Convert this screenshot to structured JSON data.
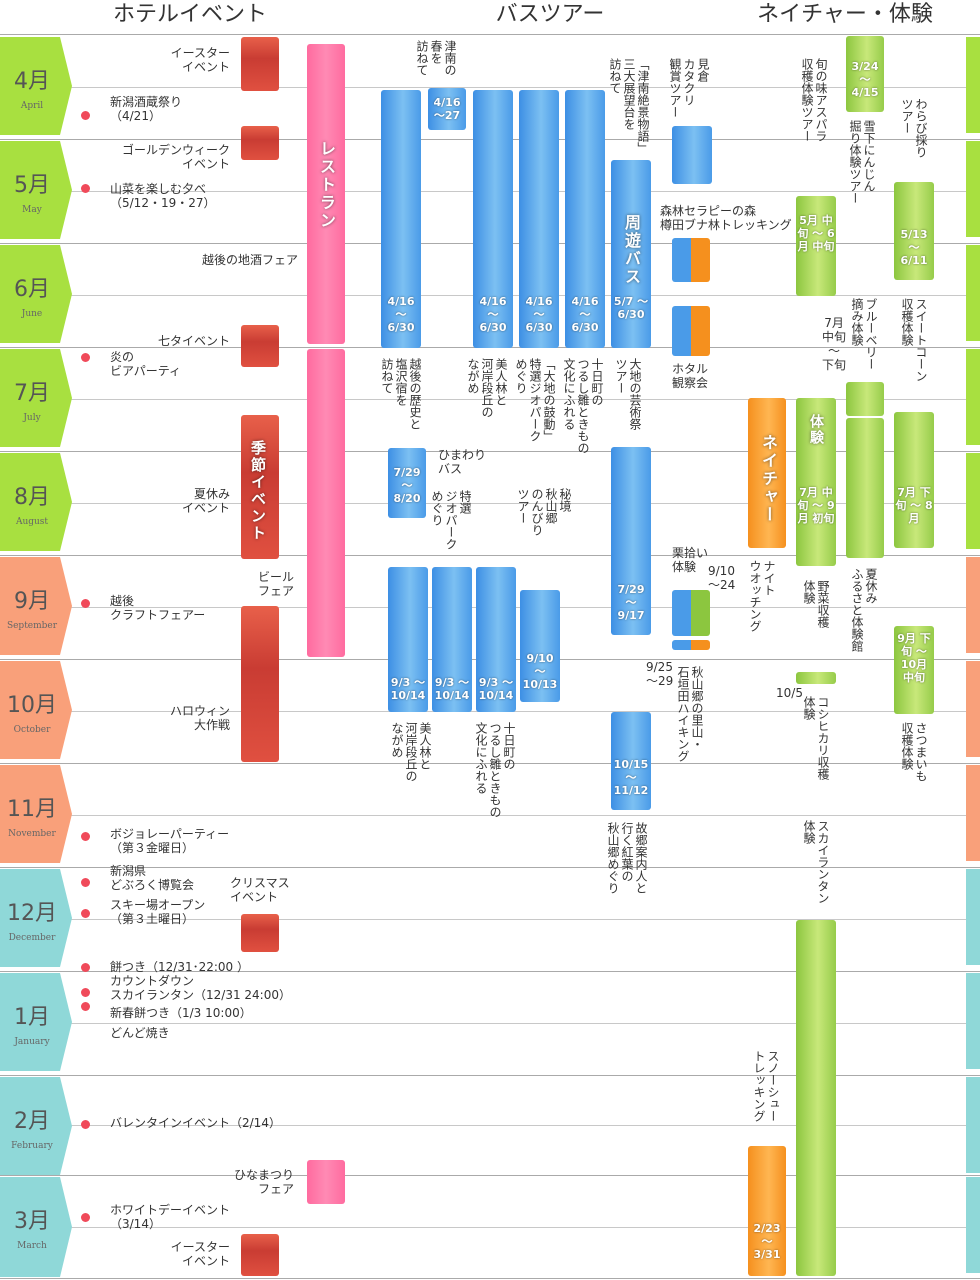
{
  "headers": {
    "hotel": "ホテルイベント",
    "bus": "バスツアー",
    "nature": "ネイチャー・体験"
  },
  "months": [
    {
      "jp": "4月",
      "en": "April",
      "color": "#a8e040"
    },
    {
      "jp": "5月",
      "en": "May",
      "color": "#a8e040"
    },
    {
      "jp": "6月",
      "en": "June",
      "color": "#a8e040"
    },
    {
      "jp": "7月",
      "en": "July",
      "color": "#a8e040"
    },
    {
      "jp": "8月",
      "en": "August",
      "color": "#a8e040"
    },
    {
      "jp": "9月",
      "en": "September",
      "color": "#f9a07a"
    },
    {
      "jp": "10月",
      "en": "October",
      "color": "#f9a07a"
    },
    {
      "jp": "11月",
      "en": "November",
      "color": "#f9a07a"
    },
    {
      "jp": "12月",
      "en": "December",
      "color": "#8fd8d8"
    },
    {
      "jp": "1月",
      "en": "January",
      "color": "#8fd8d8"
    },
    {
      "jp": "2月",
      "en": "February",
      "color": "#8fd8d8"
    },
    {
      "jp": "3月",
      "en": "March",
      "color": "#8fd8d8"
    }
  ],
  "hotel": {
    "easter1": "イースター\nイベント",
    "niigata_sake": "新潟酒蔵祭り\n（4/21）",
    "golden_week": "ゴールデンウィーク\nイベント",
    "sansai": "山菜を楽しむ夕べ\n（5/12・19・27）",
    "jizake": "越後の地酒フェア",
    "tanabata": "七タイベント",
    "beer_party": "炎の\nビアパーティ",
    "summer_holiday": "夏休み\nイベント",
    "beer_fair": "ビール\nフェア",
    "craft_fair": "越後\nクラフトフェアー",
    "halloween": "ハロウィン\n大作戦",
    "beaujolais": "ボジョレーパーティー\n（第３金曜日）",
    "doburoku": "新潟県\nどぶろく博覧会",
    "ski_open": "スキー場オープン\n（第３土曜日）",
    "christmas": "クリスマス\nイベント",
    "mochi": "餅つき（12/31･22:00 ）",
    "countdown": "カウントダウン",
    "sky_lantern": "スカイランタン（12/31 24:00）",
    "new_year_mochi": "新春餅つき（1/3 10:00）",
    "dondo": "どんど焼き",
    "valentine": "バレンタインイベント（2/14）",
    "hinamatsuri": "ひなまつり\nフェア",
    "white_day": "ホワイトデーイベント\n（3/14）",
    "easter2": "イースター\nイベント",
    "restaurant": "レストラン",
    "seasonal": "季節イベント"
  },
  "bus": {
    "tsunan_title": "津南の\n春を\n訪ねて",
    "tsunan_date": "4/16\n～27",
    "spring_dates": [
      "4/16\n～\n6/30",
      "4/16\n～\n6/30",
      "4/16\n～\n6/30",
      "4/16\n～\n6/30",
      "5/7\n～\n6/30"
    ],
    "spring_titles": [
      "越後の歴史と\n塩沢宿を\n訪ねて",
      "美人林と\n河岸段丘の\nながめ",
      "「大地の鼓動」\n特選ジオパーク\nめぐり",
      "十日町の\nつるし雛ときもの\n文化にふれる",
      "大地の芸術祭\nツアー"
    ],
    "sandai": "「津南絶景物語」\n三大展望台を\n訪ねて",
    "kataku": "見倉\nカタクリ\n観賞ツアー",
    "shuyu": "周遊バス",
    "himawari": "ひまわり\nバス",
    "himawari_date": "7/29\n～\n8/20",
    "geopark": "特選\nジオパーク\nめぐり",
    "akiyama": "秘境\n秋山郷\nのんびり\nツアー",
    "art_date": "7/29\n～\n9/17",
    "autumn_dates": [
      "9/3\n～\n10/14",
      "9/3\n～\n10/14",
      "9/3\n～\n10/14"
    ],
    "akiyama_date": "9/10\n～\n10/13",
    "autumn_titles": [
      "美人林と\n河岸段丘の\nながめ",
      "十日町の\nつるし雛ときもの\n文化にふれる"
    ],
    "guide_date": "10/15\n～\n11/12",
    "guide_title": "故郷案内人と\n行く紅葉の\n秋山郷めぐり"
  },
  "nature": {
    "forest": "森林セラピーの森\n樽田ブナ林トレッキング",
    "firefly": "ホタル\n観察会",
    "chestnut": "栗拾い\n体験",
    "chestnut_date": "9/10\n～24",
    "ishigaki": "秋山郷の里山・\n石垣田ハイキング",
    "ishigaki_date": "9/25\n～29",
    "nature_label": "ネイチャー",
    "night_watching": "ナイト\nウオッチング",
    "asparagus": "旬の味アスパラ\n収穫体験ツアー",
    "asparagus_date": "5月\n中旬\n～\n6月\n中旬",
    "yukishita": "雪下にんじん\n掘り体験ツアー",
    "yukishita_date": "3/24\n～\n4/15",
    "warabi": "わらび採り\nツアー",
    "warabi_date": "5/13\n～\n6/11",
    "blueberry": "ブルーベリー\n摘み体験",
    "blueberry_range": "7月\n中旬\n～\n下旬",
    "corn": "スイートコーン\n収穫体験",
    "corn_date": "7月\n下旬\n～\n8月",
    "taiken": "体験",
    "taiken_date": "7月\n中旬\n～\n9月\n初旬",
    "vegetable": "野菜収穫\n体験",
    "furusato": "夏休み\nふるさと体験館",
    "koshihikari_date": "10/5",
    "koshihikari": "コシヒカリ収穫\n体験",
    "sweetpotato_date": "9月\n下旬\n～\n10月\n中旬",
    "sweetpotato": "さつまいも\n収穫体験",
    "sky_lantern_exp": "スカイランタン\n体験",
    "snowshoe": "スノーシュー\nトレッキング",
    "snowshoe_date": "2/23\n～\n3/31"
  }
}
